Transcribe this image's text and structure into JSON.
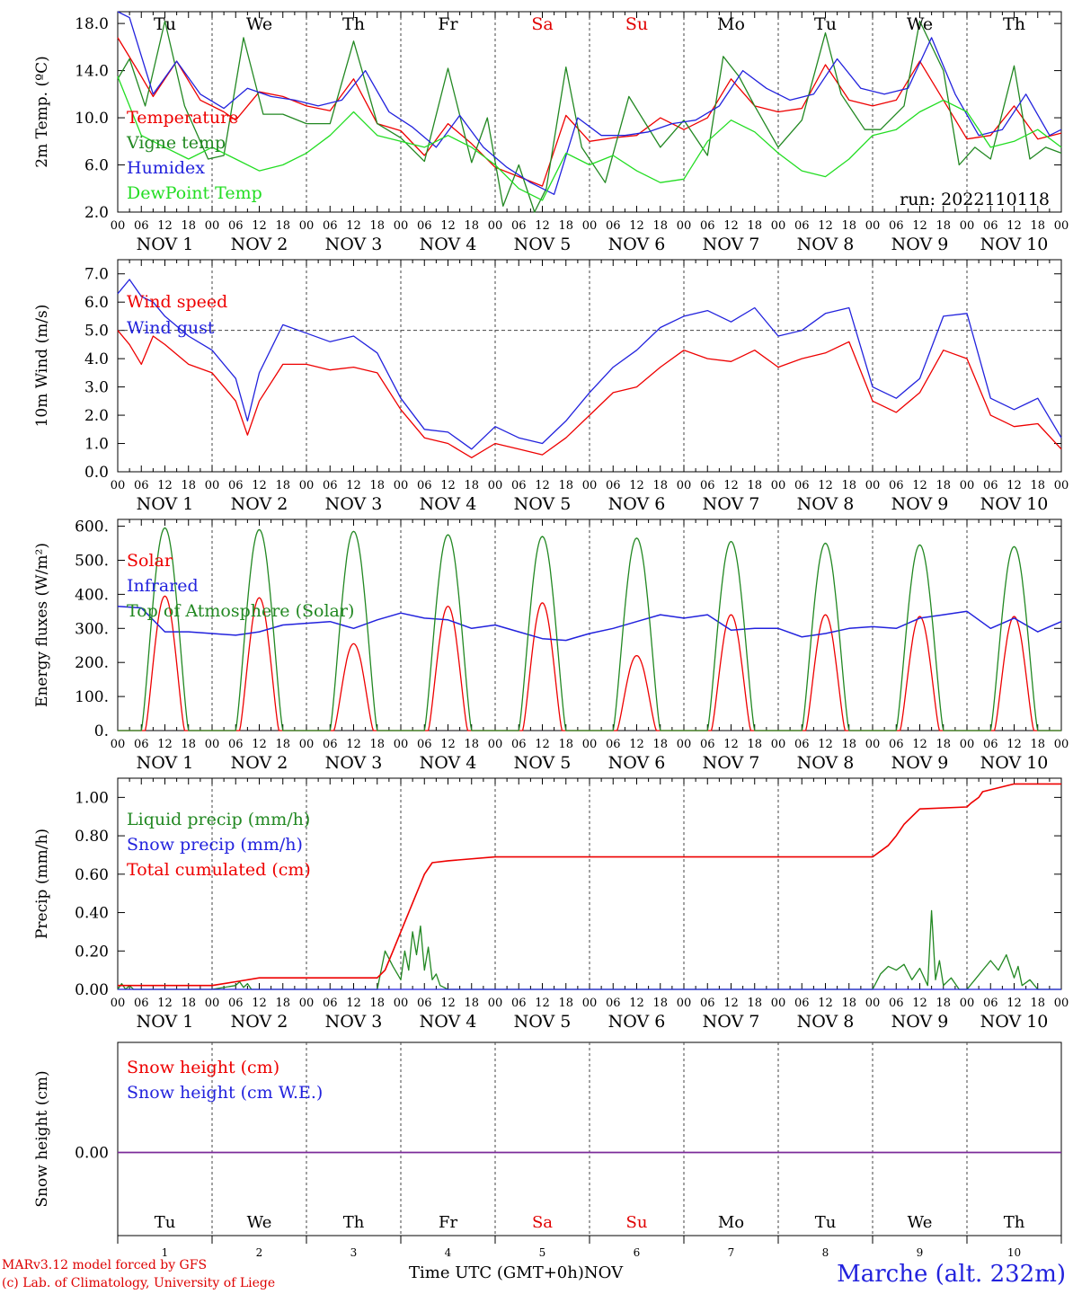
{
  "days": {
    "top_labels": [
      "Tu",
      "We",
      "Th",
      "Fr",
      "Sa",
      "Su",
      "Mo",
      "Tu",
      "We",
      "Th"
    ],
    "weekend_color": "#e00000",
    "weekend_index": [
      4,
      5
    ],
    "date_labels": [
      "NOV  1",
      "NOV  2",
      "NOV  3",
      "NOV  4",
      "NOV  5",
      "NOV  6",
      "NOV  7",
      "NOV  8",
      "NOV  9",
      "NOV 10"
    ],
    "hour_ticks": [
      "00",
      "06",
      "12",
      "18"
    ],
    "last_hour": "00",
    "bottom_day_numbers": [
      "1",
      "2",
      "3",
      "4",
      "5",
      "6",
      "7",
      "8",
      "9",
      "10"
    ]
  },
  "footer": {
    "credit_line1": "MARv3.12 model forced by GFS",
    "credit_line2": "(c) Lab. of Climatology, University of Liege",
    "time_label": "Time UTC (GMT+0h)",
    "month_label": "NOV",
    "station": "Marche (alt. 232m)"
  },
  "chart_data": [
    {
      "type": "line",
      "ylabel": "2m Temp. (ºC)",
      "ylim": [
        2,
        19
      ],
      "yticks": [
        "2.0",
        "6.0",
        "10.0",
        "14.0",
        "18.0"
      ],
      "x_unit": "hours since 2022-11-01 00 UTC",
      "run_label": "run: 2022110118",
      "series": [
        {
          "name": "Temperature",
          "color": "#ee0000",
          "x": [
            0,
            6,
            9,
            15,
            21,
            27,
            30,
            36,
            42,
            48,
            54,
            60,
            66,
            72,
            78,
            84,
            90,
            96,
            102,
            108,
            114,
            120,
            126,
            132,
            138,
            144,
            150,
            156,
            162,
            168,
            174,
            180,
            186,
            192,
            198,
            204,
            210,
            216,
            222,
            228,
            234,
            240
          ],
          "y": [
            16.8,
            13.5,
            11.8,
            14.8,
            11.5,
            10.5,
            9.8,
            12.2,
            11.8,
            11.0,
            10.6,
            13.3,
            9.5,
            8.9,
            6.8,
            9.5,
            7.8,
            5.8,
            5.0,
            4.2,
            10.2,
            8.0,
            8.3,
            8.5,
            10.0,
            9.0,
            10.0,
            13.3,
            11.0,
            10.5,
            10.8,
            14.5,
            11.5,
            11.0,
            11.5,
            14.8,
            11.5,
            8.2,
            8.5,
            11.0,
            8.2,
            8.7
          ]
        },
        {
          "name": "Vigne temp",
          "color": "#228822",
          "x": [
            0,
            3,
            7,
            12,
            17,
            23,
            27,
            32,
            37,
            42,
            48,
            54,
            60,
            66,
            72,
            78,
            84,
            90,
            94,
            98,
            102,
            106,
            109,
            114,
            118,
            124,
            130,
            138,
            144,
            150,
            154,
            158,
            162,
            168,
            174,
            180,
            184,
            190,
            194,
            200,
            204,
            210,
            214,
            218,
            222,
            228,
            232,
            236,
            240
          ],
          "y": [
            13.3,
            15.0,
            11.0,
            18.2,
            11.0,
            6.5,
            6.8,
            16.8,
            10.3,
            10.3,
            9.5,
            9.5,
            16.5,
            9.5,
            8.3,
            6.3,
            14.2,
            6.2,
            10.0,
            2.5,
            6.0,
            2.0,
            4.0,
            14.3,
            7.5,
            4.5,
            11.8,
            7.5,
            9.8,
            6.8,
            15.2,
            13.5,
            11.0,
            7.5,
            9.8,
            17.2,
            12.0,
            9.0,
            9.0,
            11.0,
            18.2,
            14.0,
            6.0,
            7.5,
            6.5,
            14.4,
            6.5,
            7.5,
            7.0
          ]
        },
        {
          "name": "Humidex",
          "color": "#2222dd",
          "x": [
            0,
            3,
            9,
            15,
            21,
            27,
            33,
            39,
            45,
            51,
            57,
            63,
            69,
            75,
            81,
            87,
            93,
            99,
            105,
            111,
            117,
            123,
            129,
            135,
            141,
            147,
            153,
            159,
            165,
            171,
            177,
            183,
            189,
            195,
            201,
            207,
            213,
            219,
            225,
            231,
            237,
            240
          ],
          "y": [
            19.0,
            18.5,
            12.0,
            14.8,
            12.0,
            10.8,
            12.5,
            11.8,
            11.5,
            11.0,
            11.5,
            14.0,
            10.5,
            9.2,
            7.5,
            10.2,
            7.5,
            5.8,
            4.5,
            3.5,
            10.0,
            8.5,
            8.5,
            8.8,
            9.5,
            9.8,
            11.0,
            14.0,
            12.5,
            11.5,
            12.0,
            15.0,
            12.5,
            12.0,
            12.5,
            16.8,
            12.0,
            8.5,
            9.0,
            12.0,
            8.5,
            9.0
          ]
        },
        {
          "name": "DewPoint Temp",
          "color": "#22dd22",
          "x": [
            0,
            6,
            12,
            18,
            24,
            30,
            36,
            42,
            48,
            54,
            60,
            66,
            72,
            78,
            84,
            90,
            96,
            102,
            108,
            114,
            120,
            126,
            132,
            138,
            144,
            150,
            156,
            162,
            168,
            174,
            180,
            186,
            192,
            198,
            204,
            210,
            216,
            222,
            228,
            234,
            240
          ],
          "y": [
            13.5,
            8.5,
            7.5,
            6.5,
            7.5,
            6.5,
            5.5,
            6.0,
            7.0,
            8.5,
            10.5,
            8.5,
            8.0,
            7.5,
            8.5,
            7.5,
            6.0,
            4.0,
            3.0,
            7.0,
            6.0,
            6.8,
            5.5,
            4.5,
            4.8,
            8.0,
            9.8,
            8.8,
            7.0,
            5.5,
            5.0,
            6.5,
            8.5,
            9.0,
            10.5,
            11.5,
            10.5,
            7.5,
            8.0,
            9.0,
            7.5
          ]
        }
      ]
    },
    {
      "type": "line",
      "ylabel": "10m Wind (m/s)",
      "ylim": [
        0,
        7.5
      ],
      "yticks": [
        "0.0",
        "1.0",
        "2.0",
        "3.0",
        "4.0",
        "5.0",
        "6.0",
        "7.0"
      ],
      "reference_line": 5.0,
      "series": [
        {
          "name": "Wind speed",
          "color": "#ee0000",
          "x": [
            0,
            3,
            6,
            9,
            12,
            18,
            24,
            30,
            33,
            36,
            42,
            48,
            54,
            60,
            66,
            72,
            78,
            84,
            90,
            96,
            102,
            108,
            114,
            120,
            126,
            132,
            138,
            144,
            150,
            156,
            162,
            168,
            174,
            180,
            186,
            192,
            198,
            204,
            210,
            216,
            222,
            228,
            234,
            240
          ],
          "y": [
            5.0,
            4.5,
            3.8,
            4.8,
            4.5,
            3.8,
            3.5,
            2.5,
            1.3,
            2.5,
            3.8,
            3.8,
            3.6,
            3.7,
            3.5,
            2.2,
            1.2,
            1.0,
            0.5,
            1.0,
            0.8,
            0.6,
            1.2,
            2.0,
            2.8,
            3.0,
            3.7,
            4.3,
            4.0,
            3.9,
            4.3,
            3.7,
            4.0,
            4.2,
            4.6,
            2.5,
            2.1,
            2.8,
            4.3,
            4.0,
            2.0,
            1.6,
            1.7,
            0.8
          ]
        },
        {
          "name": "Wind gust",
          "color": "#2222dd",
          "x": [
            0,
            3,
            6,
            9,
            12,
            18,
            24,
            30,
            33,
            36,
            42,
            48,
            54,
            60,
            66,
            72,
            78,
            84,
            90,
            96,
            102,
            108,
            114,
            120,
            126,
            132,
            138,
            144,
            150,
            156,
            162,
            168,
            174,
            180,
            186,
            192,
            198,
            204,
            210,
            216,
            222,
            228,
            234,
            240
          ],
          "y": [
            6.3,
            6.8,
            6.2,
            6.0,
            5.5,
            4.8,
            4.3,
            3.3,
            1.8,
            3.5,
            5.2,
            4.9,
            4.6,
            4.8,
            4.2,
            2.6,
            1.5,
            1.4,
            0.8,
            1.6,
            1.2,
            1.0,
            1.8,
            2.8,
            3.7,
            4.3,
            5.1,
            5.5,
            5.7,
            5.3,
            5.8,
            4.8,
            5.0,
            5.6,
            5.8,
            3.0,
            2.6,
            3.3,
            5.5,
            5.6,
            2.6,
            2.2,
            2.6,
            1.2
          ]
        }
      ]
    },
    {
      "type": "line",
      "ylabel": "Energy fluxes (W/m²)",
      "ylim": [
        0,
        620
      ],
      "yticks": [
        "0.",
        "100.",
        "200.",
        "300.",
        "400.",
        "500.",
        "600."
      ],
      "series": [
        {
          "name": "Solar",
          "color": "#ee0000",
          "peak_hour": 12,
          "half_width_h": 5,
          "daily_peaks": [
            395,
            390,
            255,
            365,
            375,
            220,
            340,
            340,
            335,
            335
          ]
        },
        {
          "name": "Infrared",
          "color": "#2222dd",
          "x": [
            0,
            6,
            12,
            18,
            24,
            30,
            36,
            42,
            48,
            54,
            60,
            66,
            72,
            78,
            84,
            90,
            96,
            102,
            108,
            114,
            120,
            126,
            132,
            138,
            144,
            150,
            156,
            162,
            168,
            174,
            180,
            186,
            192,
            198,
            204,
            210,
            216,
            222,
            228,
            234,
            240
          ],
          "y": [
            365,
            360,
            290,
            290,
            285,
            280,
            290,
            310,
            315,
            320,
            300,
            325,
            345,
            330,
            325,
            300,
            310,
            290,
            270,
            265,
            285,
            300,
            320,
            340,
            330,
            340,
            295,
            300,
            300,
            275,
            285,
            300,
            305,
            300,
            330,
            340,
            350,
            300,
            330,
            290,
            320
          ]
        },
        {
          "name": "Top of Atmosphere (Solar)",
          "color": "#228822",
          "peak_hour": 12,
          "half_width_h": 6,
          "daily_peaks": [
            595,
            590,
            585,
            575,
            570,
            565,
            555,
            550,
            545,
            540
          ]
        }
      ]
    },
    {
      "type": "line",
      "ylabel": "Precip (mm/h)",
      "ylim": [
        0,
        1.1
      ],
      "yticks": [
        "0.00",
        "0.20",
        "0.40",
        "0.60",
        "0.80",
        "1.00"
      ],
      "series": [
        {
          "name": "Liquid precip (mm/h)",
          "color": "#228822",
          "x": [
            0,
            1,
            2,
            3,
            4,
            6,
            24,
            30,
            31,
            32,
            33,
            34,
            36,
            66,
            68,
            70,
            72,
            73,
            74,
            75,
            76,
            77,
            78,
            79,
            80,
            81,
            82,
            84,
            96,
            192,
            194,
            196,
            198,
            200,
            202,
            204,
            206,
            207,
            208,
            209,
            210,
            212,
            214,
            216,
            218,
            220,
            222,
            224,
            226,
            228,
            229,
            230,
            232,
            234,
            240
          ],
          "y": [
            0,
            0.03,
            0,
            0.02,
            0,
            0,
            0,
            0.02,
            0.04,
            0.01,
            0.03,
            0,
            0,
            0,
            0.2,
            0.12,
            0.05,
            0.2,
            0.1,
            0.3,
            0.18,
            0.33,
            0.1,
            0.22,
            0.05,
            0.08,
            0.02,
            0,
            0,
            0,
            0.08,
            0.12,
            0.1,
            0.13,
            0.05,
            0.11,
            0.02,
            0.41,
            0.05,
            0.15,
            0.02,
            0.06,
            0,
            0,
            0.05,
            0.1,
            0.15,
            0.1,
            0.18,
            0.06,
            0.12,
            0.02,
            0.05,
            0,
            0
          ]
        },
        {
          "name": "Snow precip (mm/h)",
          "color": "#2222dd",
          "x": [
            0,
            240
          ],
          "y": [
            0,
            0
          ]
        },
        {
          "name": "Total cumulated (cm)",
          "color": "#ee0000",
          "x": [
            0,
            6,
            24,
            30,
            36,
            66,
            68,
            70,
            72,
            74,
            75,
            77,
            78,
            80,
            84,
            96,
            120,
            144,
            168,
            192,
            196,
            198,
            200,
            204,
            216,
            217,
            219,
            220,
            226,
            228,
            240
          ],
          "y": [
            0.02,
            0.02,
            0.02,
            0.04,
            0.06,
            0.06,
            0.1,
            0.2,
            0.3,
            0.4,
            0.45,
            0.55,
            0.6,
            0.66,
            0.67,
            0.69,
            0.69,
            0.69,
            0.69,
            0.69,
            0.75,
            0.8,
            0.86,
            0.94,
            0.95,
            0.97,
            1.0,
            1.03,
            1.06,
            1.07,
            1.07
          ]
        }
      ]
    },
    {
      "type": "line",
      "ylabel": "Snow height (cm)",
      "yticks": [
        "0.00"
      ],
      "series": [
        {
          "name": "Snow height (cm)",
          "color": "#ee0000",
          "x": [
            0,
            240
          ],
          "y": [
            0,
            0
          ]
        },
        {
          "name": "Snow height (cm W.E.)",
          "color": "#2222dd",
          "x": [
            0,
            240
          ],
          "y": [
            0,
            0
          ]
        }
      ]
    }
  ]
}
